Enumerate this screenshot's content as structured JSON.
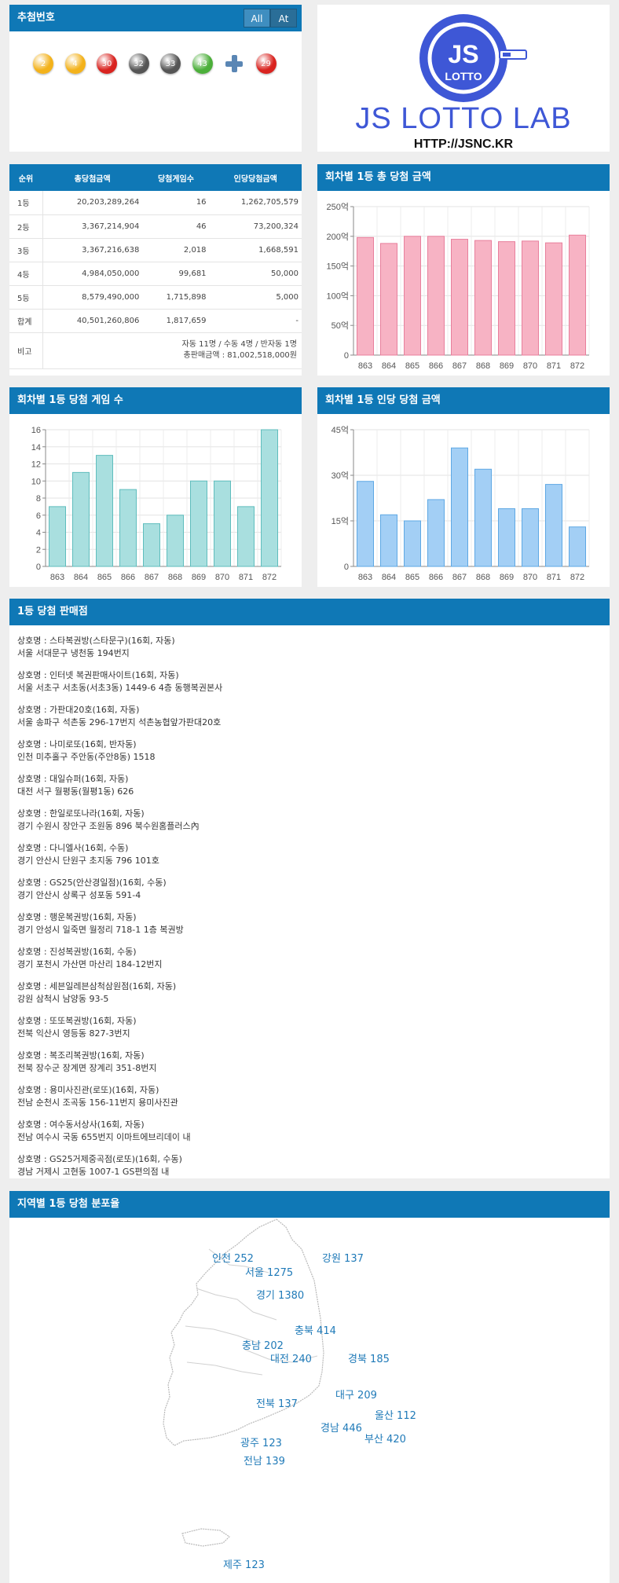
{
  "recommend": {
    "title": "추첨번호",
    "tabs": [
      "All",
      "At"
    ],
    "balls": [
      {
        "num": "2",
        "color": "#f3b21b"
      },
      {
        "num": "4",
        "color": "#f3b21b"
      },
      {
        "num": "30",
        "color": "#d9231f"
      },
      {
        "num": "32",
        "color": "#555555"
      },
      {
        "num": "33",
        "color": "#555555"
      },
      {
        "num": "43",
        "color": "#4caf3a"
      }
    ],
    "bonus": {
      "num": "29",
      "color": "#d9231f"
    }
  },
  "logo": {
    "initials": "JS",
    "badge": "LOTTO",
    "name": "JS LOTTO LAB",
    "url": "HTTP://JSNC.KR"
  },
  "prize_table": {
    "headers": [
      "순위",
      "총당첨금액",
      "당첨게임수",
      "인당당첨금액"
    ],
    "rows": [
      [
        "1등",
        "20,203,289,264",
        "16",
        "1,262,705,579"
      ],
      [
        "2등",
        "3,367,214,904",
        "46",
        "73,200,324"
      ],
      [
        "3등",
        "3,367,216,638",
        "2,018",
        "1,668,591"
      ],
      [
        "4등",
        "4,984,050,000",
        "99,681",
        "50,000"
      ],
      [
        "5등",
        "8,579,490,000",
        "1,715,898",
        "5,000"
      ],
      [
        "합계",
        "40,501,260,806",
        "1,817,659",
        "-"
      ]
    ],
    "note_label": "비고",
    "note_line1": "자동 11명 / 수동 4명 / 반자동 1명",
    "note_line2": "총판매금액 : 81,002,518,000원"
  },
  "chart_data": [
    {
      "title": "회차별 1등 총 당첨 금액",
      "type": "bar",
      "categories": [
        "863",
        "864",
        "865",
        "866",
        "867",
        "868",
        "869",
        "870",
        "871",
        "872"
      ],
      "values": [
        198,
        188,
        200,
        200,
        195,
        193,
        191,
        192,
        189,
        202
      ],
      "ylim": [
        0,
        250
      ],
      "yticks": [
        0,
        50,
        100,
        150,
        200,
        250
      ],
      "ytick_labels": [
        "0",
        "50억",
        "100억",
        "150억",
        "200억",
        "250억"
      ],
      "color": "#f7b3c4",
      "stroke": "#e87f9c",
      "grid": true
    },
    {
      "title": "회차별 1등 당첨 게임 수",
      "type": "bar",
      "categories": [
        "863",
        "864",
        "865",
        "866",
        "867",
        "868",
        "869",
        "870",
        "871",
        "872"
      ],
      "values": [
        7,
        11,
        13,
        9,
        5,
        6,
        10,
        10,
        7,
        16
      ],
      "ylim": [
        0,
        16
      ],
      "yticks": [
        0,
        2,
        4,
        6,
        8,
        10,
        12,
        14,
        16
      ],
      "ytick_labels": [
        "0",
        "2",
        "4",
        "6",
        "8",
        "10",
        "12",
        "14",
        "16"
      ],
      "color": "#a9dfdf",
      "stroke": "#5fbdbd",
      "grid": true
    },
    {
      "title": "회차별 1등 인당 당첨 금액",
      "type": "bar",
      "categories": [
        "863",
        "864",
        "865",
        "866",
        "867",
        "868",
        "869",
        "870",
        "871",
        "872"
      ],
      "values": [
        28,
        17,
        15,
        22,
        39,
        32,
        19,
        19,
        27,
        13
      ],
      "ylim": [
        0,
        45
      ],
      "yticks": [
        0,
        15,
        30,
        45
      ],
      "ytick_labels": [
        "0",
        "15억",
        "30억",
        "45억"
      ],
      "color": "#a3cff5",
      "stroke": "#5ea8e4",
      "grid": true
    }
  ],
  "shops": {
    "title": "1등 당첨 판매점",
    "items": [
      {
        "name": "상호명 : 스타복권방(스타문구)(16회, 자동)",
        "addr": "서울 서대문구 냉천동 194번지"
      },
      {
        "name": "상호명 : 인터넷 복권판매사이트(16회, 자동)",
        "addr": "서울 서초구 서초동(서초3동) 1449-6 4층 동행복권본사"
      },
      {
        "name": "상호명 : 가판대20호(16회, 자동)",
        "addr": "서울 송파구 석촌동 296-17번지 석촌농협앞가판대20호"
      },
      {
        "name": "상호명 : 나미로또(16회, 반자동)",
        "addr": "인천 미추홀구 주안동(주안8동) 1518"
      },
      {
        "name": "상호명 : 대일슈퍼(16회, 자동)",
        "addr": "대전 서구 월평동(월평1동) 626"
      },
      {
        "name": "상호명 : 한일로또나라(16회, 자동)",
        "addr": "경기 수원시 장안구 조원동 896 북수원홈플러스內"
      },
      {
        "name": "상호명 : 다니엘사(16회, 수동)",
        "addr": "경기 안산시 단원구 초지동 796 101호"
      },
      {
        "name": "상호명 : GS25(안산경일점)(16회, 수동)",
        "addr": "경기 안산시 상록구 성포동 591-4"
      },
      {
        "name": "상호명 : 행운복권방(16회, 자동)",
        "addr": "경기 안성시 일죽면 월정리 718-1 1층 복권방"
      },
      {
        "name": "상호명 : 진성복권방(16회, 수동)",
        "addr": "경기 포천시 가산면 마산리 184-12번지"
      },
      {
        "name": "상호명 : 세븐일레븐삼척삼원점(16회, 자동)",
        "addr": "강원 삼척시 남양동 93-5"
      },
      {
        "name": "상호명 : 또또복권방(16회, 자동)",
        "addr": "전북 익산시 영등동 827-3번지"
      },
      {
        "name": "상호명 : 복조리복권방(16회, 자동)",
        "addr": "전북 장수군 장계면 장계리 351-8번지"
      },
      {
        "name": "상호명 : 용미사진관(로또)(16회, 자동)",
        "addr": "전남 순천시 조곡동 156-11번지 용미사진관"
      },
      {
        "name": "상호명 : 여수동서상사(16회, 자동)",
        "addr": "전남 여수시 국동 655번지 이마트에브리데이 내"
      },
      {
        "name": "상호명 : GS25거제중곡점(로또)(16회, 수동)",
        "addr": "경남 거제시 고현동 1007-1 GS편의점 내"
      }
    ]
  },
  "map": {
    "title": "지역별 1등 당첨 분포율",
    "regions": [
      {
        "label": "인천 252",
        "key": "incheon"
      },
      {
        "label": "서울 1275",
        "key": "seoul"
      },
      {
        "label": "강원 137",
        "key": "gangwon"
      },
      {
        "label": "경기 1380",
        "key": "gyeonggi"
      },
      {
        "label": "충북 414",
        "key": "chungbuk"
      },
      {
        "label": "충남 202",
        "key": "chungnam"
      },
      {
        "label": "대전 240",
        "key": "daejeon"
      },
      {
        "label": "경북 185",
        "key": "gyeongbuk"
      },
      {
        "label": "대구 209",
        "key": "daegu"
      },
      {
        "label": "전북 137",
        "key": "jeonbuk"
      },
      {
        "label": "울산 112",
        "key": "ulsan"
      },
      {
        "label": "경남 446",
        "key": "gyeongnam"
      },
      {
        "label": "부산 420",
        "key": "busan"
      },
      {
        "label": "광주 123",
        "key": "gwangju"
      },
      {
        "label": "전남 139",
        "key": "jeonnam"
      },
      {
        "label": "제주 123",
        "key": "jeju"
      }
    ]
  }
}
